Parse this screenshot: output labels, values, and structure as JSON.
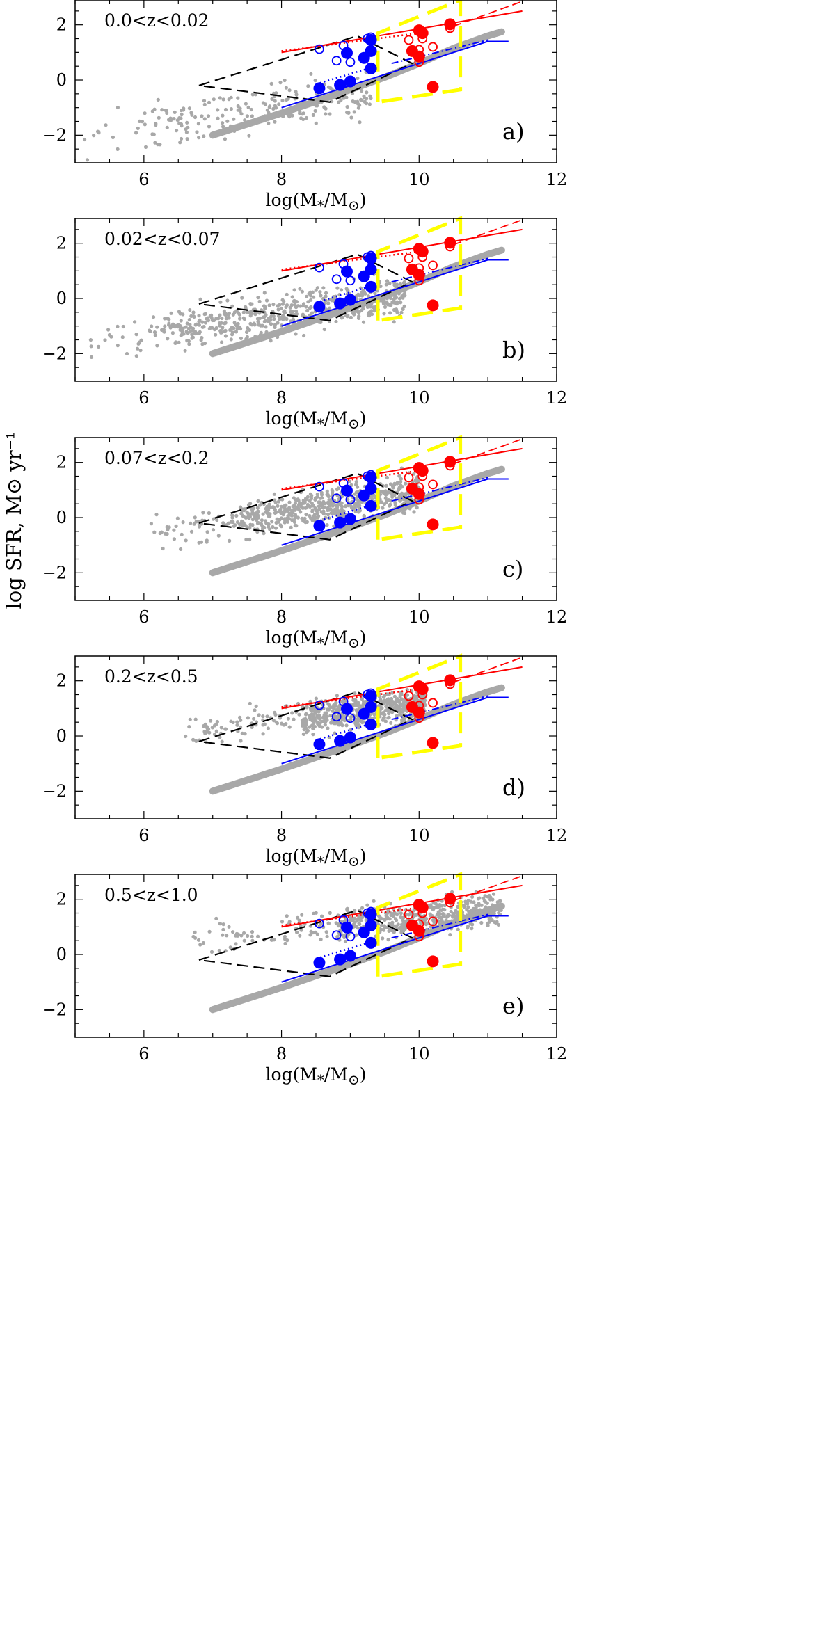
{
  "figure": {
    "ylabel": "log SFR, M⊙ yr⁻¹",
    "xlabel_prefix": "log(M",
    "xlabel_sub1": "*",
    "xlabel_mid": "/M",
    "xlabel_sub2": "⊙",
    "xlabel_suffix": ")"
  },
  "colors": {
    "gray": "#a8a8a8",
    "red": "#ff0000",
    "blue": "#0000ff",
    "yellow": "#ffff00",
    "black": "#000000"
  },
  "chart_data": {
    "type": "scatter",
    "xlim": [
      5,
      12
    ],
    "ylim": [
      -3,
      2.9
    ],
    "xticks": [
      6,
      8,
      10,
      12
    ],
    "yticks": [
      -2,
      0,
      2
    ],
    "panels": [
      {
        "label": "a)",
        "zbin": "0.0<z<0.02",
        "cloud": {
          "n": 230,
          "xmin": 5.0,
          "xmax": 9.3,
          "lowcut": 6.0,
          "slope": 0.38,
          "yc": -1.55,
          "xc": 6.5,
          "spread": 0.6
        }
      },
      {
        "label": "b)",
        "zbin": "0.02<z<0.07",
        "cloud": {
          "n": 560,
          "xmin": 5.2,
          "xmax": 9.8,
          "lowcut": 6.3,
          "slope": 0.36,
          "yc": -0.85,
          "xc": 7.2,
          "spread": 0.55
        }
      },
      {
        "label": "c)",
        "zbin": "0.07<z<0.2",
        "cloud": {
          "n": 620,
          "xmin": 6.0,
          "xmax": 10.0,
          "lowcut": 7.4,
          "slope": 0.42,
          "yc": 0.15,
          "xc": 8.0,
          "spread": 0.5
        }
      },
      {
        "label": "d)",
        "zbin": "0.2<z<0.5",
        "cloud": {
          "n": 640,
          "xmin": 6.6,
          "xmax": 10.1,
          "lowcut": 8.3,
          "slope": 0.3,
          "yc": 0.75,
          "xc": 8.7,
          "spread": 0.45
        }
      },
      {
        "label": "e)",
        "zbin": "0.5<z<1.0",
        "cloud": {
          "n": 560,
          "xmin": 6.7,
          "xmax": 11.2,
          "lowcut": 8.8,
          "slope": 0.25,
          "yc": 1.15,
          "xc": 9.2,
          "spread": 0.45
        }
      }
    ],
    "thick_gray_track": [
      [
        7.0,
        -2.0
      ],
      [
        8.0,
        -1.2
      ],
      [
        9.0,
        -0.35
      ],
      [
        9.5,
        0.1
      ],
      [
        10.0,
        0.6
      ],
      [
        10.5,
        1.15
      ],
      [
        11.0,
        1.6
      ],
      [
        11.2,
        1.75
      ]
    ],
    "black_dashed_region": [
      [
        6.8,
        -0.2
      ],
      [
        9.1,
        1.6
      ],
      [
        9.9,
        0.6
      ],
      [
        8.7,
        -0.8
      ],
      [
        6.8,
        -0.2
      ]
    ],
    "yellow_dashed_box": [
      [
        9.4,
        -0.8
      ],
      [
        9.4,
        1.7
      ],
      [
        10.6,
        2.9
      ],
      [
        10.6,
        -0.35
      ],
      [
        9.4,
        -0.8
      ]
    ],
    "red_line_solid": [
      [
        8.0,
        1.0
      ],
      [
        11.5,
        2.5
      ]
    ],
    "red_line_dashed": [
      [
        10.5,
        1.95
      ],
      [
        11.5,
        2.85
      ]
    ],
    "red_line_dotted": [
      [
        8.0,
        1.05
      ],
      [
        10.0,
        1.7
      ]
    ],
    "blue_line_solid": [
      [
        8.0,
        -1.0
      ],
      [
        11.0,
        1.4
      ],
      [
        11.3,
        1.4
      ]
    ],
    "blue_line_dashdot": [
      [
        9.6,
        0.6
      ],
      [
        11.0,
        1.45
      ]
    ],
    "blue_line_dotted": [
      [
        8.5,
        -0.15
      ],
      [
        9.3,
        0.45
      ]
    ],
    "blue_filled_points": [
      [
        8.55,
        -0.3
      ],
      [
        8.85,
        -0.18
      ],
      [
        9.0,
        -0.05
      ],
      [
        9.3,
        0.42
      ],
      [
        9.2,
        0.8
      ],
      [
        8.95,
        0.98
      ],
      [
        9.3,
        1.05
      ],
      [
        9.3,
        1.45
      ]
    ],
    "blue_open_points": [
      [
        8.55,
        1.12
      ],
      [
        8.9,
        1.25
      ],
      [
        8.8,
        0.7
      ],
      [
        9.0,
        0.65
      ],
      [
        9.25,
        1.5
      ],
      [
        9.3,
        1.55
      ]
    ],
    "red_filled_points": [
      [
        9.9,
        1.05
      ],
      [
        10.0,
        0.85
      ],
      [
        10.0,
        1.8
      ],
      [
        10.05,
        1.7
      ],
      [
        10.45,
        2.02
      ],
      [
        10.2,
        -0.25
      ]
    ],
    "red_open_points": [
      [
        9.85,
        1.45
      ],
      [
        10.0,
        1.1
      ],
      [
        10.0,
        0.65
      ],
      [
        10.2,
        1.2
      ],
      [
        10.45,
        1.88
      ],
      [
        10.05,
        1.5
      ]
    ]
  }
}
